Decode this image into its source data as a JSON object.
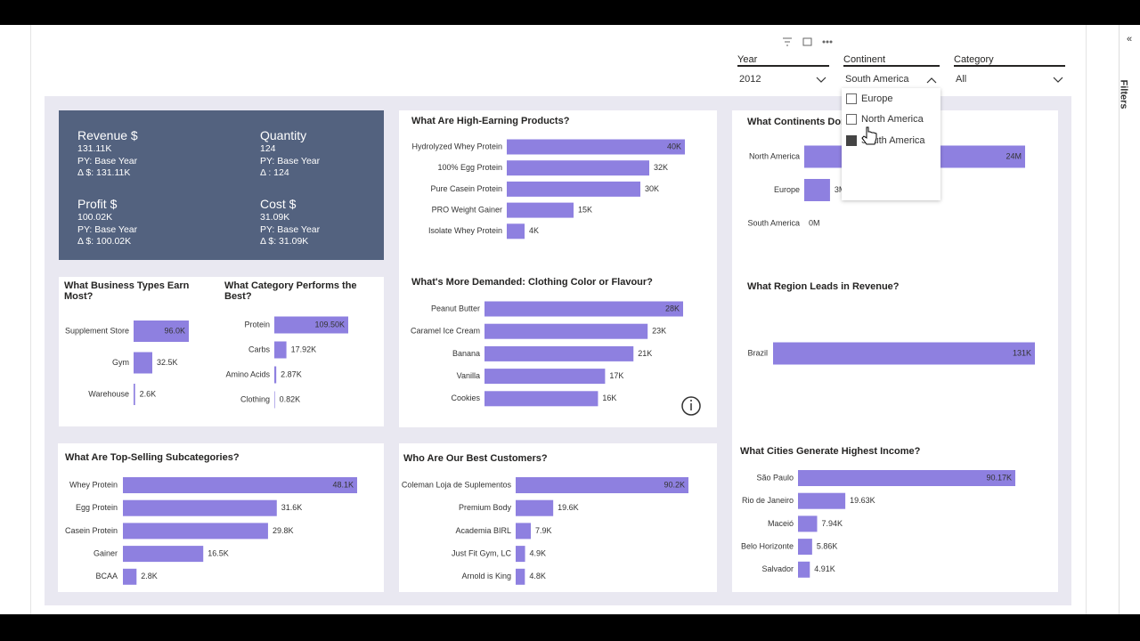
{
  "sidebar": {
    "label": "Filters"
  },
  "slicers": [
    {
      "label": "Year",
      "value": "2012"
    },
    {
      "label": "Continent",
      "value": "South America",
      "options": [
        "Europe",
        "North America",
        "South America"
      ]
    },
    {
      "label": "Category",
      "value": "All"
    }
  ],
  "kpis": [
    {
      "title": "Revenue $",
      "lines": [
        "131.11K",
        "PY: Base Year",
        "Δ $: 131.11K"
      ]
    },
    {
      "title": "Quantity",
      "lines": [
        "124",
        "PY: Base Year",
        "Δ : 124"
      ]
    },
    {
      "title": "Profit $",
      "lines": [
        "100.02K",
        "PY: Base Year",
        "Δ $: 100.02K"
      ]
    },
    {
      "title": "Cost $",
      "lines": [
        "31.09K",
        "PY: Base Year",
        "Δ $: 31.09K"
      ]
    }
  ],
  "chart_data": [
    {
      "type": "bar",
      "title": "What Are High-Earning Products?",
      "color": "#8e80e0",
      "categories": [
        "Hydrolyzed Whey Protein",
        "100% Egg Protein",
        "Pure Casein Protein",
        "PRO Weight Gainer",
        "Isolate Whey Protein"
      ],
      "values": [
        40000,
        32000,
        30000,
        15000,
        4000
      ],
      "value_labels": [
        "40K",
        "32K",
        "30K",
        "15K",
        "4K"
      ]
    },
    {
      "type": "bar",
      "title": "What's More Demanded: Clothing Color or Flavour?",
      "color": "#8e80e0",
      "categories": [
        "Peanut Butter",
        "Caramel Ice Cream",
        "Banana",
        "Vanilla",
        "Cookies"
      ],
      "values": [
        28000,
        23000,
        21000,
        17000,
        16000
      ],
      "value_labels": [
        "28K",
        "23K",
        "21K",
        "17K",
        "16K"
      ]
    },
    {
      "type": "bar",
      "title": "What Continents Dom",
      "color": "#8e80e0",
      "categories": [
        "North America",
        "Europe",
        "South America"
      ],
      "values": [
        24000000,
        2800000,
        0
      ],
      "value_labels": [
        "24M",
        "3M",
        "0M"
      ]
    },
    {
      "type": "bar",
      "title": "What Region Leads in Revenue?",
      "color": "#8e80e0",
      "categories": [
        "Brazil"
      ],
      "values": [
        131000
      ],
      "value_labels": [
        "131K"
      ]
    },
    {
      "type": "bar",
      "title": "What Business Types Earn Most?",
      "color": "#8e80e0",
      "categories": [
        "Supplement Store",
        "Gym",
        "Warehouse"
      ],
      "values": [
        96000,
        32500,
        2600
      ],
      "value_labels": [
        "96.0K",
        "32.5K",
        "2.6K"
      ]
    },
    {
      "type": "bar",
      "title": "What Category Performs the Best?",
      "color": "#8e80e0",
      "categories": [
        "Protein",
        "Carbs",
        "Amino Acids",
        "Clothing"
      ],
      "values": [
        109500,
        17920,
        2870,
        820
      ],
      "value_labels": [
        "109.50K",
        "17.92K",
        "2.87K",
        "0.82K"
      ]
    },
    {
      "type": "bar",
      "title": "What Are Top-Selling Subcategories?",
      "color": "#8e80e0",
      "categories": [
        "Whey Protein",
        "Egg Protein",
        "Casein Protein",
        "Gainer",
        "BCAA"
      ],
      "values": [
        48100,
        31600,
        29800,
        16500,
        2800
      ],
      "value_labels": [
        "48.1K",
        "31.6K",
        "29.8K",
        "16.5K",
        "2.8K"
      ]
    },
    {
      "type": "bar",
      "title": "Who Are Our Best Customers?",
      "color": "#8e80e0",
      "categories": [
        "Coleman Loja de Suplementos",
        "Premium Body",
        "Academia BIRL",
        "Just Fit Gym, LC",
        "Arnold is King"
      ],
      "values": [
        90200,
        19600,
        7900,
        4900,
        4800
      ],
      "value_labels": [
        "90.2K",
        "19.6K",
        "7.9K",
        "4.9K",
        "4.8K"
      ]
    },
    {
      "type": "bar",
      "title": "What Cities Generate Highest Income?",
      "color": "#8e80e0",
      "categories": [
        "São Paulo",
        "Rio de Janeiro",
        "Maceió",
        "Belo Horizonte",
        "Salvador"
      ],
      "values": [
        90170,
        19630,
        7940,
        5860,
        4910
      ],
      "value_labels": [
        "90.17K",
        "19.63K",
        "7.94K",
        "5.86K",
        "4.91K"
      ]
    }
  ]
}
